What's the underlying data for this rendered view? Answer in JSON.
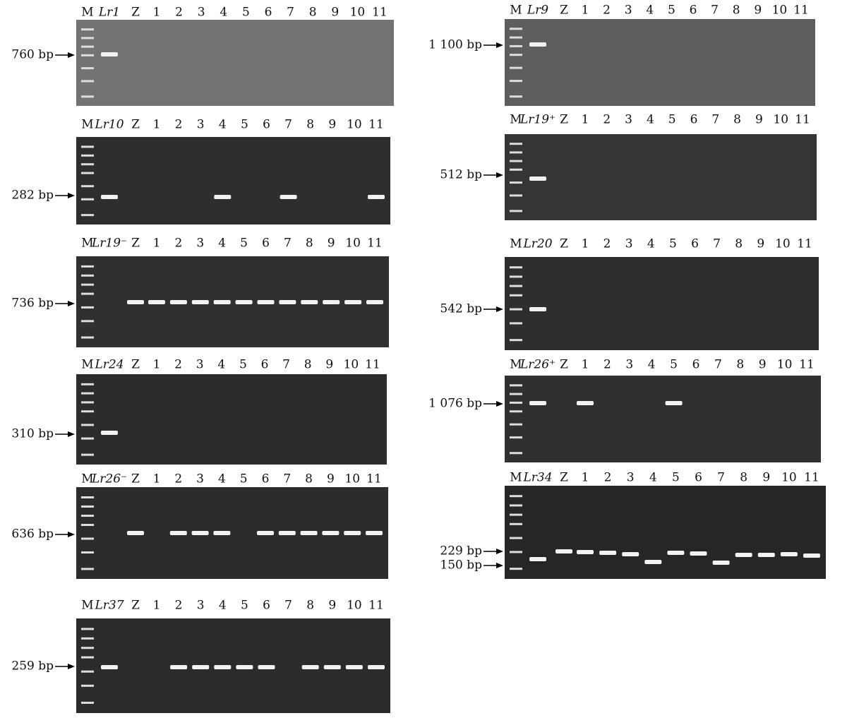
{
  "panels": [
    {
      "lanes": [
        "M",
        "Lr1",
        "Z",
        "1",
        "2",
        "3",
        "4",
        "5",
        "6",
        "7",
        "8",
        "9",
        "10",
        "11"
      ],
      "markers": [
        "760 bp"
      ]
    },
    {
      "lanes": [
        "M",
        "Lr10",
        "Z",
        "1",
        "2",
        "3",
        "4",
        "5",
        "6",
        "7",
        "8",
        "9",
        "10",
        "11"
      ],
      "markers": [
        "282 bp"
      ]
    },
    {
      "lanes": [
        "M",
        "Lr19⁻",
        "Z",
        "1",
        "2",
        "3",
        "4",
        "5",
        "6",
        "7",
        "8",
        "9",
        "10",
        "11"
      ],
      "markers": [
        "736 bp"
      ]
    },
    {
      "lanes": [
        "M",
        "Lr24",
        "Z",
        "1",
        "2",
        "3",
        "4",
        "5",
        "6",
        "7",
        "8",
        "9",
        "10",
        "11"
      ],
      "markers": [
        "310 bp"
      ]
    },
    {
      "lanes": [
        "M",
        "Lr26⁻",
        "Z",
        "1",
        "2",
        "3",
        "4",
        "5",
        "6",
        "7",
        "8",
        "9",
        "10",
        "11"
      ],
      "markers": [
        "636 bp"
      ]
    },
    {
      "lanes": [
        "M",
        "Lr37",
        "Z",
        "1",
        "2",
        "3",
        "4",
        "5",
        "6",
        "7",
        "8",
        "9",
        "10",
        "11"
      ],
      "markers": [
        "259 bp"
      ]
    },
    {
      "lanes": [
        "M",
        "Lr9",
        "Z",
        "1",
        "2",
        "3",
        "4",
        "5",
        "6",
        "7",
        "8",
        "9",
        "10",
        "11"
      ],
      "markers": [
        "1 100 bp"
      ]
    },
    {
      "lanes": [
        "M",
        "Lr19⁺",
        "Z",
        "1",
        "2",
        "3",
        "4",
        "5",
        "6",
        "7",
        "8",
        "9",
        "10",
        "11"
      ],
      "markers": [
        "512 bp"
      ]
    },
    {
      "lanes": [
        "M",
        "Lr20",
        "Z",
        "1",
        "2",
        "3",
        "4",
        "5",
        "6",
        "7",
        "8",
        "9",
        "10",
        "11"
      ],
      "markers": [
        "542 bp"
      ]
    },
    {
      "lanes": [
        "M",
        "Lr26⁺",
        "Z",
        "1",
        "2",
        "3",
        "4",
        "5",
        "6",
        "7",
        "8",
        "9",
        "10",
        "11"
      ],
      "markers": [
        "1 076 bp"
      ]
    },
    {
      "lanes": [
        "M",
        "Lr34",
        "Z",
        "1",
        "2",
        "3",
        "4",
        "5",
        "6",
        "7",
        "8",
        "9",
        "10",
        "11"
      ],
      "markers": [
        "229 bp",
        "150 bp"
      ]
    }
  ]
}
